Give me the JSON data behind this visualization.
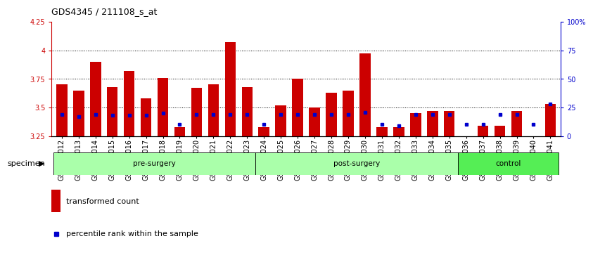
{
  "title": "GDS4345 / 211108_s_at",
  "samples": [
    "GSM842012",
    "GSM842013",
    "GSM842014",
    "GSM842015",
    "GSM842016",
    "GSM842017",
    "GSM842018",
    "GSM842019",
    "GSM842020",
    "GSM842021",
    "GSM842022",
    "GSM842023",
    "GSM842024",
    "GSM842025",
    "GSM842026",
    "GSM842027",
    "GSM842028",
    "GSM842029",
    "GSM842030",
    "GSM842031",
    "GSM842032",
    "GSM842033",
    "GSM842034",
    "GSM842035",
    "GSM842036",
    "GSM842037",
    "GSM842038",
    "GSM842039",
    "GSM842040",
    "GSM842041"
  ],
  "red_values": [
    3.7,
    3.65,
    3.9,
    3.68,
    3.82,
    3.58,
    3.76,
    3.33,
    3.67,
    3.7,
    4.07,
    3.68,
    3.33,
    3.52,
    3.75,
    3.5,
    3.63,
    3.65,
    3.97,
    3.33,
    3.33,
    3.45,
    3.47,
    3.47,
    3.22,
    3.34,
    3.34,
    3.47,
    3.25,
    3.53
  ],
  "blue_values": [
    3.44,
    3.42,
    3.44,
    3.43,
    3.43,
    3.43,
    3.45,
    3.35,
    3.44,
    3.44,
    3.44,
    3.44,
    3.35,
    3.44,
    3.44,
    3.44,
    3.44,
    3.44,
    3.46,
    3.35,
    3.34,
    3.44,
    3.44,
    3.44,
    3.35,
    3.35,
    3.44,
    3.44,
    3.35,
    3.53
  ],
  "group_configs": [
    {
      "label": "pre-surgery",
      "start": 0,
      "end": 12,
      "color": "#aaffaa"
    },
    {
      "label": "post-surgery",
      "start": 12,
      "end": 24,
      "color": "#aaffaa"
    },
    {
      "label": "control",
      "start": 24,
      "end": 30,
      "color": "#55ee55"
    }
  ],
  "ymin": 3.25,
  "ymax": 4.25,
  "yticks": [
    3.25,
    3.5,
    3.75,
    4.0,
    4.25
  ],
  "ytick_labels": [
    "3.25",
    "3.5",
    "3.75",
    "4",
    "4.25"
  ],
  "right_yticks": [
    0,
    25,
    50,
    75,
    100
  ],
  "right_ytick_labels": [
    "0",
    "25",
    "50",
    "75",
    "100%"
  ],
  "grid_lines": [
    3.5,
    3.75,
    4.0
  ],
  "bar_color": "#cc0000",
  "blue_color": "#0000cc",
  "bar_width": 0.65,
  "specimen_label": "specimen",
  "legend_red": "transformed count",
  "legend_blue": "percentile rank within the sample",
  "title_fontsize": 9,
  "tick_fontsize": 7,
  "label_fontsize": 8
}
